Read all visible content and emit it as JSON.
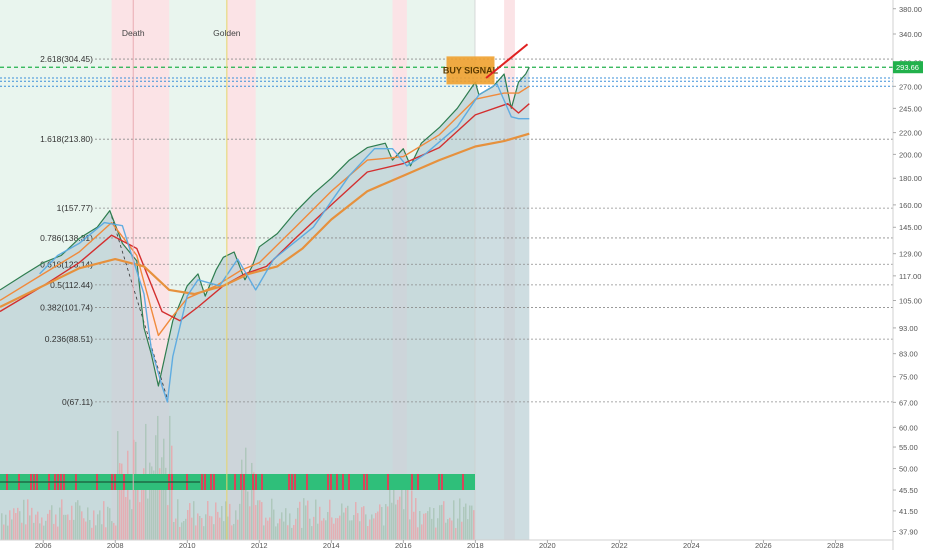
{
  "chart_data": {
    "type": "line",
    "title": "",
    "xlabel": "",
    "ylabel": "",
    "scale": "log",
    "ylim": [
      36.5,
      395
    ],
    "xlim": [
      2004.8,
      2029.6
    ],
    "grid": false,
    "x_ticks": [
      "2006",
      "2008",
      "2010",
      "2012",
      "2014",
      "2016",
      "2018",
      "2020",
      "2022",
      "2024",
      "2026",
      "2028"
    ],
    "y_ticks": [
      "380.00",
      "340.00",
      "300.00",
      "270.00",
      "245.00",
      "220.00",
      "200.00",
      "180.00",
      "160.00",
      "145.00",
      "129.00",
      "117.00",
      "105.00",
      "93.00",
      "83.00",
      "75.00",
      "67.00",
      "60.00",
      "55.00",
      "50.00",
      "45.50",
      "41.50",
      "37.90"
    ],
    "last_price": "293.66",
    "events": [
      {
        "label": "Death",
        "x": 2008.5
      },
      {
        "label": "Golden",
        "x": 2011.1
      }
    ],
    "fib_levels": [
      {
        "label": "2.618(304.45)",
        "value": 304.45
      },
      {
        "label": "1.618(213.80)",
        "value": 213.8
      },
      {
        "label": "1(157.77)",
        "value": 157.77
      },
      {
        "label": "0.786(138.31)",
        "value": 138.31
      },
      {
        "label": "0.618(123.14)",
        "value": 123.14
      },
      {
        "label": "0.5(112.44)",
        "value": 112.44
      },
      {
        "label": "0.382(101.74)",
        "value": 101.74
      },
      {
        "label": "0.236(88.51)",
        "value": 88.51
      },
      {
        "label": "0(67.11)",
        "value": 67.11
      }
    ],
    "annotation": "BUY SIGNAL",
    "series": [
      {
        "color": "#2e7d4f",
        "x": [
          2004.8,
          2005.5,
          2006,
          2006.5,
          2007,
          2007.5,
          2007.85,
          2008.2,
          2008.6,
          2008.8,
          2009.0,
          2009.2,
          2009.6,
          2010,
          2010.3,
          2010.5,
          2010.8,
          2011,
          2011.3,
          2011.6,
          2011.8,
          2012,
          2012.5,
          2013,
          2013.5,
          2014,
          2014.5,
          2015,
          2015.5,
          2015.7,
          2016,
          2016.2,
          2016.5,
          2017,
          2017.5,
          2018,
          2018.1,
          2018.5,
          2018.8,
          2019,
          2019.2,
          2019.4,
          2019.5
        ],
        "values": [
          110,
          118,
          124,
          128,
          138,
          145,
          156,
          135,
          125,
          93,
          83,
          72,
          96,
          112,
          118,
          107,
          120,
          127,
          130,
          115,
          122,
          133,
          141,
          155,
          168,
          180,
          195,
          206,
          210,
          195,
          205,
          190,
          210,
          225,
          245,
          275,
          260,
          270,
          285,
          245,
          275,
          285,
          293.66
        ]
      },
      {
        "color": "#f08a3c",
        "x": [
          2004.8,
          2006,
          2007,
          2007.9,
          2008.6,
          2009.2,
          2009.6,
          2010,
          2010.8,
          2011.5,
          2012,
          2013,
          2014,
          2015,
          2016,
          2017,
          2018,
          2018.8,
          2019.2,
          2019.5
        ],
        "values": [
          105,
          118,
          130,
          148,
          128,
          90,
          98,
          106,
          112,
          120,
          124,
          145,
          170,
          195,
          198,
          218,
          255,
          262,
          262,
          270
        ]
      },
      {
        "color": "#d32f2f",
        "x": [
          2004.8,
          2006,
          2007,
          2007.9,
          2008.6,
          2009.3,
          2009.8,
          2010.3,
          2011,
          2011.6,
          2012.2,
          2013,
          2014,
          2015,
          2016,
          2017,
          2018,
          2018.9,
          2019.2,
          2019.5
        ],
        "values": [
          100,
          112,
          124,
          140,
          132,
          100,
          96,
          102,
          112,
          118,
          122,
          138,
          160,
          185,
          192,
          206,
          238,
          250,
          240,
          250
        ]
      },
      {
        "color": "#e6913d",
        "x": [
          2004.8,
          2006,
          2007,
          2008,
          2008.8,
          2009.5,
          2010.2,
          2011,
          2011.7,
          2012.5,
          2013.2,
          2014,
          2015,
          2016,
          2017,
          2018,
          2018.8,
          2019.5
        ],
        "values": [
          102,
          112,
          121,
          126,
          122,
          110,
          108,
          112,
          118,
          122,
          132,
          150,
          170,
          182,
          195,
          207,
          212,
          219
        ]
      },
      {
        "color": "#5aaae0",
        "x": [
          2005.9,
          2006.4,
          2007,
          2007.7,
          2008.2,
          2008.8,
          2009.0,
          2009.3,
          2009.45,
          2009.6,
          2010,
          2010.3,
          2010.9,
          2011.4,
          2011.9,
          2012.4,
          2013.5,
          2014.5,
          2015.2,
          2015.7,
          2016.1,
          2016.6,
          2017.5,
          2018.1,
          2018.6,
          2019.0,
          2019.2,
          2019.5
        ],
        "values": [
          118,
          128,
          135,
          148,
          146,
          108,
          85,
          72,
          67.11,
          82,
          107,
          115,
          112,
          126,
          110,
          126,
          145,
          182,
          205,
          205,
          190,
          200,
          226,
          260,
          273,
          236,
          234,
          234
        ]
      }
    ]
  }
}
